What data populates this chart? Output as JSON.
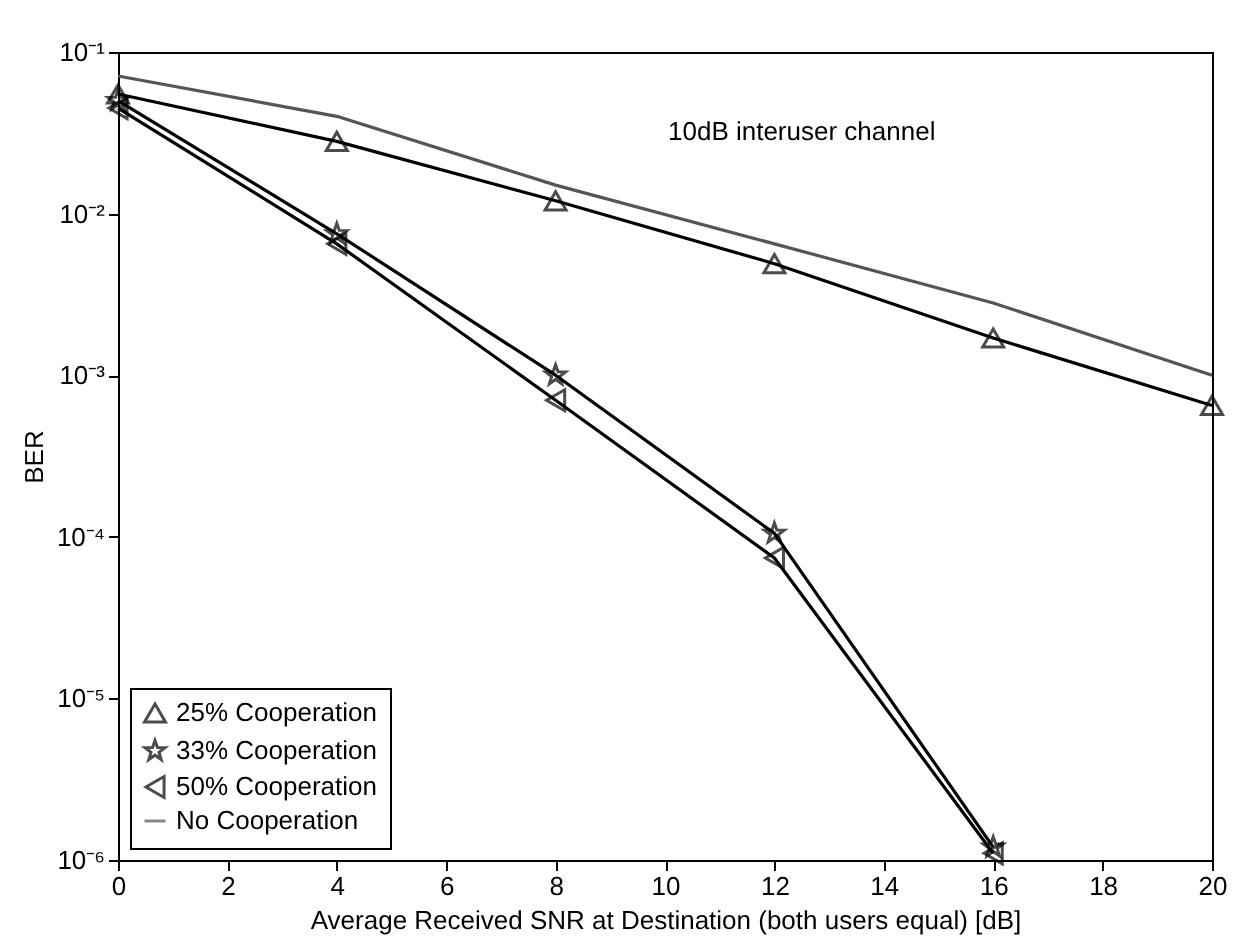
{
  "chart_data": {
    "type": "line",
    "xlabel": "Average Received SNR at Destination (both users equal) [dB]",
    "ylabel": "BER",
    "x": [
      0,
      4,
      8,
      12,
      16,
      20
    ],
    "series": [
      {
        "name": "25% Cooperation",
        "color": "#000000",
        "marker": "triangle",
        "values": [
          0.055,
          0.028,
          0.012,
          0.0049,
          0.0017,
          0.00065
        ]
      },
      {
        "name": "33% Cooperation",
        "color": "#000000",
        "marker": "star",
        "values": [
          0.05,
          0.0075,
          0.001,
          0.000105,
          1.2e-06,
          null
        ]
      },
      {
        "name": "50% Cooperation",
        "color": "#000000",
        "marker": "triangle-left",
        "values": [
          0.045,
          0.0065,
          0.0007,
          7.4e-05,
          1.1e-06,
          null
        ]
      },
      {
        "name": "No Cooperation",
        "color": "#555555",
        "marker": "none",
        "values": [
          0.071,
          0.04,
          0.015,
          0.0065,
          0.0028,
          0.001
        ]
      }
    ],
    "log": "y",
    "xlim": [
      0,
      20
    ],
    "xticks": [
      0,
      2,
      4,
      6,
      8,
      10,
      12,
      14,
      16,
      18,
      20
    ],
    "ylim": [
      1e-06,
      0.1
    ],
    "yticks": [
      {
        "value": 1e-06,
        "label": "10⁻⁶"
      },
      {
        "value": 1e-05,
        "label": "10⁻⁵"
      },
      {
        "value": 0.0001,
        "label": "10⁻⁴"
      },
      {
        "value": 0.001,
        "label": "10⁻³"
      },
      {
        "value": 0.01,
        "label": "10⁻²"
      },
      {
        "value": 0.1,
        "label": "10⁻¹"
      }
    ],
    "legend": "bottom left",
    "grid": false,
    "annotations": [
      "10dB interuser channel"
    ]
  }
}
